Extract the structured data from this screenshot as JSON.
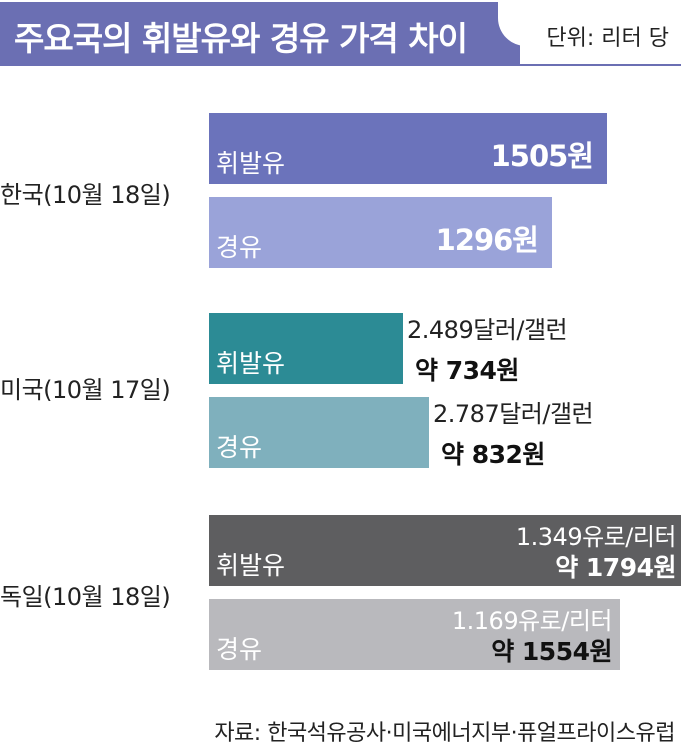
{
  "title": "주요국의 휘발유와 경유 가격 차이",
  "unit": "단위: 리터 당",
  "source": "자료: 한국석유공사·미국에너지부·퓨얼프라이스유럽",
  "colors": {
    "title_bg": "#6b6fb3",
    "korea_gasoline": "#6b73bb",
    "korea_diesel": "#9aa3d9",
    "us_gasoline": "#2c8b95",
    "us_diesel": "#7fb0bd",
    "germany_gasoline": "#5e5e60",
    "germany_diesel": "#b9b9bd"
  },
  "chart_data": {
    "type": "bar",
    "orientation": "horizontal",
    "unit": "원",
    "groups": [
      {
        "label": "한국(10월 18일)",
        "bars": [
          {
            "name": "휘발유",
            "value": 1505,
            "value_label": "1505원",
            "color_key": "korea_gasoline"
          },
          {
            "name": "경유",
            "value": 1296,
            "value_label": "1296원",
            "color_key": "korea_diesel"
          }
        ]
      },
      {
        "label": "미국(10월 17일)",
        "bars": [
          {
            "name": "휘발유",
            "value": 734,
            "local_price": "2.489달러/갤런",
            "value_label": "약 734원",
            "color_key": "us_gasoline"
          },
          {
            "name": "경유",
            "value": 832,
            "local_price": "2.787달러/갤런",
            "value_label": "약 832원",
            "color_key": "us_diesel"
          }
        ]
      },
      {
        "label": "독일(10월 18일)",
        "bars": [
          {
            "name": "휘발유",
            "value": 1794,
            "local_price": "1.349유로/리터",
            "value_label": "약 1794원",
            "color_key": "germany_gasoline"
          },
          {
            "name": "경유",
            "value": 1554,
            "local_price": "1.169유로/리터",
            "value_label": "약 1554원",
            "color_key": "germany_diesel"
          }
        ]
      }
    ]
  }
}
